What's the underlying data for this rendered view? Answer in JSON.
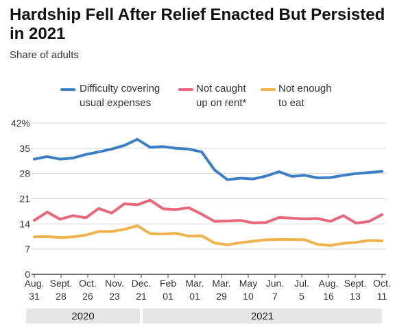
{
  "title": "Hardship Fell After Relief Enacted But Persisted in 2021",
  "subtitle": "Share of adults",
  "legend": [
    {
      "line1": "Difficulty covering",
      "line2": "usual expenses",
      "color": "#3b7fc4"
    },
    {
      "line1": "Not caught",
      "line2": "up on rent*",
      "color": "#e8677a"
    },
    {
      "line1": "Not enough",
      "line2": "to eat",
      "color": "#f0b24d"
    }
  ],
  "chart_data": {
    "type": "line",
    "y_ticks": [
      "0",
      "7",
      "14",
      "21",
      "28",
      "35",
      "42%"
    ],
    "ylim": [
      0,
      42
    ],
    "x_tick_labels": [
      [
        "Aug.",
        "31"
      ],
      [
        "Sept.",
        "28"
      ],
      [
        "Oct.",
        "26"
      ],
      [
        "Nov.",
        "23"
      ],
      [
        "Dec.",
        "21"
      ],
      [
        "Feb",
        "01"
      ],
      [
        "Mar.",
        "01"
      ],
      [
        "Mar.",
        "29"
      ],
      [
        "May",
        "10"
      ],
      [
        "Jun.",
        "7"
      ],
      [
        "Jul.",
        "5"
      ],
      [
        "Aug.",
        "16"
      ],
      [
        "Sept.",
        "13"
      ],
      [
        "Oct.",
        "11"
      ]
    ],
    "year_bands": [
      {
        "label": "2020",
        "from": 0,
        "to": 4
      },
      {
        "label": "2021",
        "from": 4,
        "to": 13
      }
    ],
    "x_count": 28,
    "series": [
      {
        "name": "Difficulty covering usual expenses",
        "color": "#3b7fc4",
        "values": [
          32.0,
          32.7,
          32.0,
          32.3,
          33.3,
          34.0,
          34.8,
          35.8,
          37.5,
          35.3,
          35.5,
          35.0,
          34.8,
          34.0,
          29.0,
          26.3,
          26.7,
          26.5,
          27.3,
          28.5,
          27.2,
          27.5,
          26.8,
          26.9,
          27.5,
          28.0,
          28.3,
          28.6
        ]
      },
      {
        "name": "Not caught up on rent*",
        "color": "#e8677a",
        "values": [
          15.0,
          17.3,
          15.3,
          16.3,
          15.7,
          18.3,
          17.0,
          19.6,
          19.3,
          20.6,
          18.2,
          18.0,
          18.5,
          16.7,
          14.7,
          14.8,
          15.0,
          14.3,
          14.4,
          15.8,
          15.6,
          15.4,
          15.5,
          14.7,
          16.3,
          14.2,
          14.7,
          16.6
        ]
      },
      {
        "name": "Not enough to eat",
        "color": "#f0b24d",
        "values": [
          10.4,
          10.5,
          10.2,
          10.4,
          10.9,
          11.9,
          11.9,
          12.5,
          13.5,
          11.3,
          11.2,
          11.4,
          10.6,
          10.7,
          8.7,
          8.2,
          8.8,
          9.2,
          9.6,
          9.7,
          9.7,
          9.6,
          8.3,
          8.0,
          8.6,
          8.9,
          9.4,
          9.3
        ]
      }
    ]
  }
}
